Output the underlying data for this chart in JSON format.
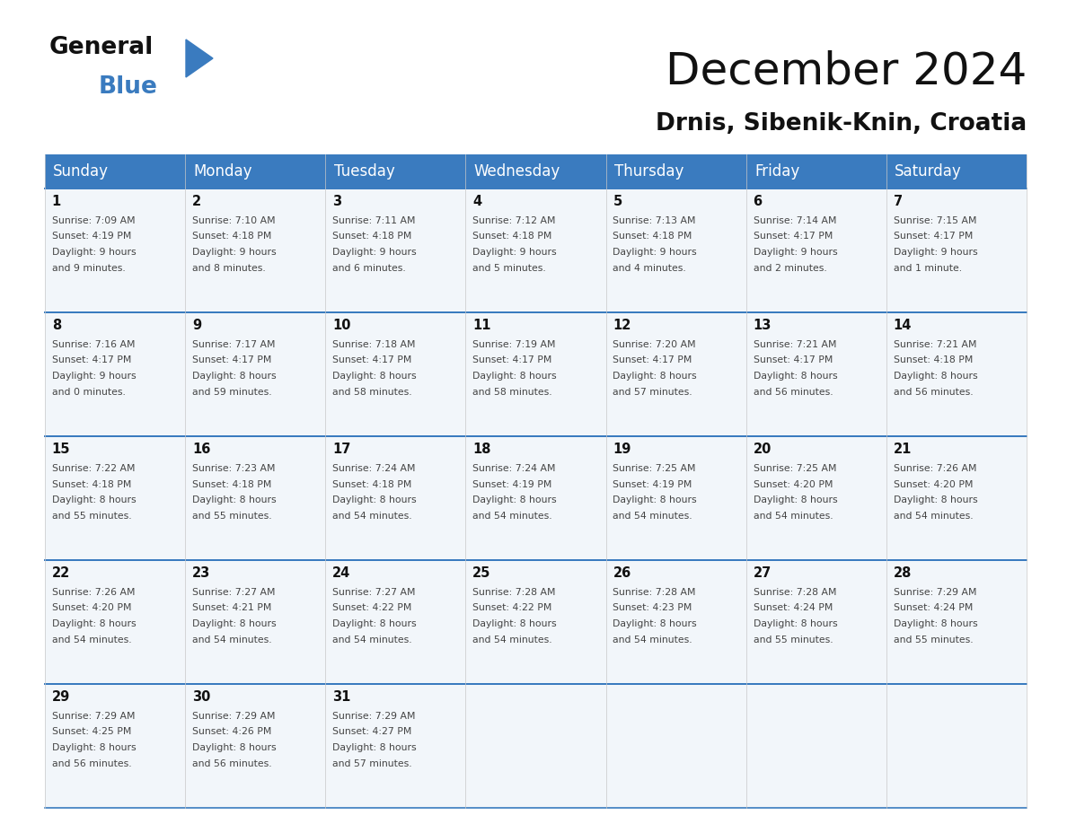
{
  "title": "December 2024",
  "subtitle": "Drnis, Sibenik-Knin, Croatia",
  "days_of_week": [
    "Sunday",
    "Monday",
    "Tuesday",
    "Wednesday",
    "Thursday",
    "Friday",
    "Saturday"
  ],
  "header_bg": "#3a7bbf",
  "header_text": "#ffffff",
  "cell_bg": "#f2f6fa",
  "divider_color": "#3a7bbf",
  "text_color": "#444444",
  "day_num_color": "#111111",
  "logo_general_color": "#111111",
  "logo_blue_color": "#3a7bbf",
  "logo_triangle_color": "#3a7bbf",
  "calendar": [
    [
      {
        "day": 1,
        "sunrise": "7:09 AM",
        "sunset": "4:19 PM",
        "daylight_h": "9 hours",
        "daylight_m": "and 9 minutes."
      },
      {
        "day": 2,
        "sunrise": "7:10 AM",
        "sunset": "4:18 PM",
        "daylight_h": "9 hours",
        "daylight_m": "and 8 minutes."
      },
      {
        "day": 3,
        "sunrise": "7:11 AM",
        "sunset": "4:18 PM",
        "daylight_h": "9 hours",
        "daylight_m": "and 6 minutes."
      },
      {
        "day": 4,
        "sunrise": "7:12 AM",
        "sunset": "4:18 PM",
        "daylight_h": "9 hours",
        "daylight_m": "and 5 minutes."
      },
      {
        "day": 5,
        "sunrise": "7:13 AM",
        "sunset": "4:18 PM",
        "daylight_h": "9 hours",
        "daylight_m": "and 4 minutes."
      },
      {
        "day": 6,
        "sunrise": "7:14 AM",
        "sunset": "4:17 PM",
        "daylight_h": "9 hours",
        "daylight_m": "and 2 minutes."
      },
      {
        "day": 7,
        "sunrise": "7:15 AM",
        "sunset": "4:17 PM",
        "daylight_h": "9 hours",
        "daylight_m": "and 1 minute."
      }
    ],
    [
      {
        "day": 8,
        "sunrise": "7:16 AM",
        "sunset": "4:17 PM",
        "daylight_h": "9 hours",
        "daylight_m": "and 0 minutes."
      },
      {
        "day": 9,
        "sunrise": "7:17 AM",
        "sunset": "4:17 PM",
        "daylight_h": "8 hours",
        "daylight_m": "and 59 minutes."
      },
      {
        "day": 10,
        "sunrise": "7:18 AM",
        "sunset": "4:17 PM",
        "daylight_h": "8 hours",
        "daylight_m": "and 58 minutes."
      },
      {
        "day": 11,
        "sunrise": "7:19 AM",
        "sunset": "4:17 PM",
        "daylight_h": "8 hours",
        "daylight_m": "and 58 minutes."
      },
      {
        "day": 12,
        "sunrise": "7:20 AM",
        "sunset": "4:17 PM",
        "daylight_h": "8 hours",
        "daylight_m": "and 57 minutes."
      },
      {
        "day": 13,
        "sunrise": "7:21 AM",
        "sunset": "4:17 PM",
        "daylight_h": "8 hours",
        "daylight_m": "and 56 minutes."
      },
      {
        "day": 14,
        "sunrise": "7:21 AM",
        "sunset": "4:18 PM",
        "daylight_h": "8 hours",
        "daylight_m": "and 56 minutes."
      }
    ],
    [
      {
        "day": 15,
        "sunrise": "7:22 AM",
        "sunset": "4:18 PM",
        "daylight_h": "8 hours",
        "daylight_m": "and 55 minutes."
      },
      {
        "day": 16,
        "sunrise": "7:23 AM",
        "sunset": "4:18 PM",
        "daylight_h": "8 hours",
        "daylight_m": "and 55 minutes."
      },
      {
        "day": 17,
        "sunrise": "7:24 AM",
        "sunset": "4:18 PM",
        "daylight_h": "8 hours",
        "daylight_m": "and 54 minutes."
      },
      {
        "day": 18,
        "sunrise": "7:24 AM",
        "sunset": "4:19 PM",
        "daylight_h": "8 hours",
        "daylight_m": "and 54 minutes."
      },
      {
        "day": 19,
        "sunrise": "7:25 AM",
        "sunset": "4:19 PM",
        "daylight_h": "8 hours",
        "daylight_m": "and 54 minutes."
      },
      {
        "day": 20,
        "sunrise": "7:25 AM",
        "sunset": "4:20 PM",
        "daylight_h": "8 hours",
        "daylight_m": "and 54 minutes."
      },
      {
        "day": 21,
        "sunrise": "7:26 AM",
        "sunset": "4:20 PM",
        "daylight_h": "8 hours",
        "daylight_m": "and 54 minutes."
      }
    ],
    [
      {
        "day": 22,
        "sunrise": "7:26 AM",
        "sunset": "4:20 PM",
        "daylight_h": "8 hours",
        "daylight_m": "and 54 minutes."
      },
      {
        "day": 23,
        "sunrise": "7:27 AM",
        "sunset": "4:21 PM",
        "daylight_h": "8 hours",
        "daylight_m": "and 54 minutes."
      },
      {
        "day": 24,
        "sunrise": "7:27 AM",
        "sunset": "4:22 PM",
        "daylight_h": "8 hours",
        "daylight_m": "and 54 minutes."
      },
      {
        "day": 25,
        "sunrise": "7:28 AM",
        "sunset": "4:22 PM",
        "daylight_h": "8 hours",
        "daylight_m": "and 54 minutes."
      },
      {
        "day": 26,
        "sunrise": "7:28 AM",
        "sunset": "4:23 PM",
        "daylight_h": "8 hours",
        "daylight_m": "and 54 minutes."
      },
      {
        "day": 27,
        "sunrise": "7:28 AM",
        "sunset": "4:24 PM",
        "daylight_h": "8 hours",
        "daylight_m": "and 55 minutes."
      },
      {
        "day": 28,
        "sunrise": "7:29 AM",
        "sunset": "4:24 PM",
        "daylight_h": "8 hours",
        "daylight_m": "and 55 minutes."
      }
    ],
    [
      {
        "day": 29,
        "sunrise": "7:29 AM",
        "sunset": "4:25 PM",
        "daylight_h": "8 hours",
        "daylight_m": "and 56 minutes."
      },
      {
        "day": 30,
        "sunrise": "7:29 AM",
        "sunset": "4:26 PM",
        "daylight_h": "8 hours",
        "daylight_m": "and 56 minutes."
      },
      {
        "day": 31,
        "sunrise": "7:29 AM",
        "sunset": "4:27 PM",
        "daylight_h": "8 hours",
        "daylight_m": "and 57 minutes."
      },
      null,
      null,
      null,
      null
    ]
  ]
}
